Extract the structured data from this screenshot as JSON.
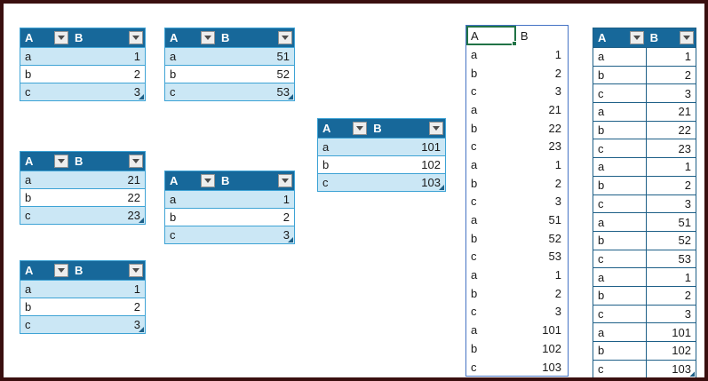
{
  "colors": {
    "page_bg": "#ffffff",
    "frame_border": "#3a0f0f",
    "header_bg": "#17689a",
    "header_text": "#ffffff",
    "band_fill": "#cbe7f5",
    "row_fill": "#ffffff",
    "band_border": "#3ea3d5",
    "dark_border": "#1d5f87",
    "range_border": "#4472c4",
    "selection": "#217346",
    "text": "#1a1a1a",
    "filter_btn_bg": "#ededed",
    "filter_btn_border": "#919191",
    "filter_arrow": "#4d4d4d",
    "resize_handle": "#1d5f87"
  },
  "tables": [
    {
      "id": "table-top-left",
      "style": "banded",
      "columns": [
        "A",
        "B"
      ],
      "rows": [
        [
          "a",
          1
        ],
        [
          "b",
          2
        ],
        [
          "c",
          3
        ]
      ]
    },
    {
      "id": "table-top-second",
      "style": "banded",
      "columns": [
        "A",
        "B"
      ],
      "rows": [
        [
          "a",
          51
        ],
        [
          "b",
          52
        ],
        [
          "c",
          53
        ]
      ]
    },
    {
      "id": "table-middle-left",
      "style": "banded",
      "columns": [
        "A",
        "B"
      ],
      "rows": [
        [
          "a",
          21
        ],
        [
          "b",
          22
        ],
        [
          "c",
          23
        ]
      ]
    },
    {
      "id": "table-middle-second",
      "style": "banded",
      "columns": [
        "A",
        "B"
      ],
      "rows": [
        [
          "a",
          1
        ],
        [
          "b",
          2
        ],
        [
          "c",
          3
        ]
      ]
    },
    {
      "id": "table-bottom-left",
      "style": "banded",
      "columns": [
        "A",
        "B"
      ],
      "rows": [
        [
          "a",
          1
        ],
        [
          "b",
          2
        ],
        [
          "c",
          3
        ]
      ]
    },
    {
      "id": "table-center",
      "style": "banded",
      "columns": [
        "A",
        "B"
      ],
      "rows": [
        [
          "a",
          101
        ],
        [
          "b",
          102
        ],
        [
          "c",
          103
        ]
      ]
    },
    {
      "id": "combined-range-plain",
      "style": "plain",
      "columns": [
        "A",
        "B"
      ],
      "selected_header": "A",
      "rows": [
        [
          "a",
          1
        ],
        [
          "b",
          2
        ],
        [
          "c",
          3
        ],
        [
          "a",
          21
        ],
        [
          "b",
          22
        ],
        [
          "c",
          23
        ],
        [
          "a",
          1
        ],
        [
          "b",
          2
        ],
        [
          "c",
          3
        ],
        [
          "a",
          51
        ],
        [
          "b",
          52
        ],
        [
          "c",
          53
        ],
        [
          "a",
          1
        ],
        [
          "b",
          2
        ],
        [
          "c",
          3
        ],
        [
          "a",
          101
        ],
        [
          "b",
          102
        ],
        [
          "c",
          103
        ]
      ]
    },
    {
      "id": "combined-table-right",
      "style": "bordered",
      "columns": [
        "A",
        "B"
      ],
      "rows": [
        [
          "a",
          1
        ],
        [
          "b",
          2
        ],
        [
          "c",
          3
        ],
        [
          "a",
          21
        ],
        [
          "b",
          22
        ],
        [
          "c",
          23
        ],
        [
          "a",
          1
        ],
        [
          "b",
          2
        ],
        [
          "c",
          3
        ],
        [
          "a",
          51
        ],
        [
          "b",
          52
        ],
        [
          "c",
          53
        ],
        [
          "a",
          1
        ],
        [
          "b",
          2
        ],
        [
          "c",
          3
        ],
        [
          "a",
          101
        ],
        [
          "b",
          102
        ],
        [
          "c",
          103
        ]
      ]
    }
  ]
}
